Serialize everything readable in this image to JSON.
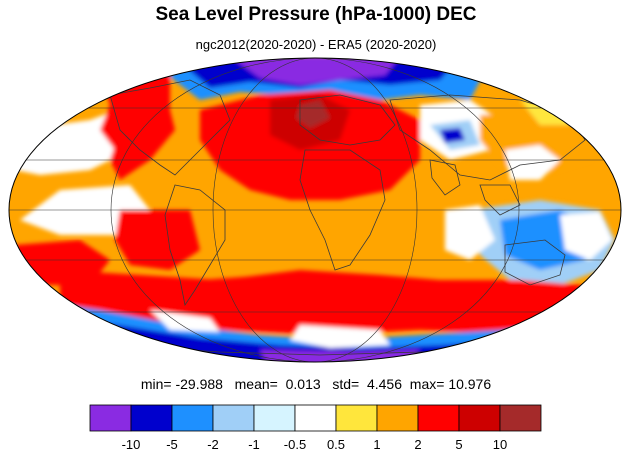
{
  "title": "Sea Level Pressure (hPa-1000) DEC",
  "subtitle": "ngc2012(2020-2020) - ERA5 (2020-2020)",
  "stats": {
    "min_label": "min=",
    "min": "-29.988",
    "mean_label": "mean=",
    "mean": "0.013",
    "std_label": "std=",
    "std": "4.456",
    "max_label": "max=",
    "max": "10.976"
  },
  "colorbar": {
    "colors": [
      "#8a2be2",
      "#0000cd",
      "#1e90ff",
      "#a0cff7",
      "#d6f4ff",
      "#ffffff",
      "#ffe63c",
      "#ffa500",
      "#ff0000",
      "#cd0000",
      "#a52a2a"
    ],
    "tick_labels": [
      "-10",
      "-5",
      "-2",
      "-1",
      "-0.5",
      "0.5",
      "1",
      "2",
      "5",
      "10"
    ]
  },
  "map": {
    "projection": "Mollweide",
    "graticule": true,
    "coastlines": true,
    "colors": {
      "ocean_land_base": "#ffa500",
      "coastline": "#3a3a3a",
      "graticule": "#333333"
    }
  }
}
